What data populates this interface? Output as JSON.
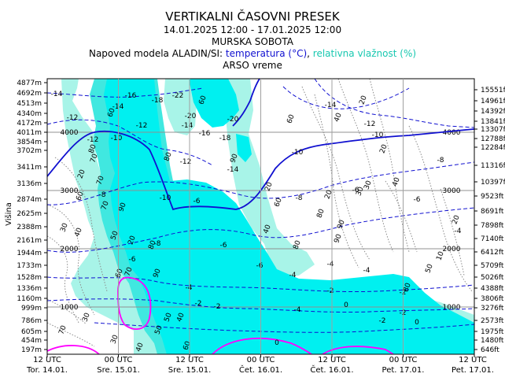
{
  "title": "VERTIKALNI ČASOVNI PRESEK",
  "period": "14.01.2025 12:00 - 17.01.2025 12:00",
  "location": "MURSKA SOBOTA",
  "subtitle_prefix": "Napoved modela ALADIN/SI:",
  "subtitle_temp": "temperatura (°C)",
  "subtitle_sep": ",",
  "subtitle_rh": "relativna vlažnost (%)",
  "source": "ARSO vreme",
  "colors": {
    "temperature": "#1010d0",
    "humidity_light": "#a8f4e8",
    "humidity_mid": "#40e8e0",
    "humidity_high": "#00f0f0",
    "freezing": "#ff00ff",
    "dewpoint": "#909090"
  },
  "chart_data": {
    "type": "heatmap",
    "ylabel": "Višina",
    "x_ticks": [
      {
        "time": "12 UTC",
        "day": "Tor. 14.01."
      },
      {
        "time": "00 UTC",
        "day": "Sre. 15.01."
      },
      {
        "time": "12 UTC",
        "day": "Sre. 15.01."
      },
      {
        "time": "00 UTC",
        "day": "Čet. 16.01."
      },
      {
        "time": "12 UTC",
        "day": "Čet. 16.01."
      },
      {
        "time": "00 UTC",
        "day": "Pet. 17.01."
      },
      {
        "time": "12 UTC",
        "day": "Pet. 17.01."
      }
    ],
    "y_ticks_m": [
      "4877m",
      "4692m",
      "4513m",
      "4340m",
      "4172m",
      "4011m",
      "3854m",
      "3702m",
      "3411m",
      "3136m",
      "2874m",
      "2625m",
      "2388m",
      "2161m",
      "1944m",
      "1733m",
      "1528m",
      "1336m",
      "1160m",
      "999m",
      "786m",
      "605m",
      "454m",
      "197m"
    ],
    "y_ticks_ft": [
      "15551ft",
      "14961ft",
      "14392ft",
      "13841ft",
      "13307ft",
      "12788ft",
      "12284ft",
      "11316ft",
      "10397ft",
      "9523ft",
      "8691ft",
      "7898ft",
      "7140ft",
      "6412ft",
      "5709ft",
      "5026ft",
      "4388ft",
      "3806ft",
      "3276ft",
      "2573ft",
      "1975ft",
      "1480ft",
      "646ft"
    ],
    "height_lines_m": [
      4000,
      3000,
      2000,
      1000
    ],
    "height_line_labels": [
      "4000",
      "3000",
      "2000",
      "1000"
    ],
    "temperature_labels": [
      "-14",
      "-12",
      "-14",
      "-16",
      "-18",
      "-20",
      "-22",
      "-10",
      "-12",
      "-14",
      "-16",
      "-18",
      "-20",
      "-12",
      "-14",
      "-10",
      "-12",
      "-8",
      "-10",
      "-6",
      "-8",
      "-6",
      "-4",
      "-6",
      "-4",
      "-2",
      "-4",
      "-2",
      "0",
      "-2",
      "0",
      "-8",
      "-6",
      "-4",
      "-2",
      "0",
      "-6",
      "-4",
      "-2",
      "-14",
      "-12",
      "-10",
      "-8",
      "-6",
      "-4",
      "-2"
    ],
    "humidity_labels": [
      "60",
      "80",
      "70",
      "20",
      "60",
      "30",
      "40",
      "50",
      "70",
      "90",
      "70",
      "20",
      "80",
      "60",
      "70",
      "90",
      "50",
      "40",
      "30",
      "40",
      "60",
      "80",
      "90",
      "20",
      "40",
      "60",
      "80",
      "80",
      "20",
      "20",
      "30",
      "10",
      "50",
      "80",
      "90",
      "90",
      "40",
      "20",
      "30",
      "40",
      "60",
      "20",
      "50",
      "60",
      "70",
      "30"
    ],
    "grid": true
  }
}
